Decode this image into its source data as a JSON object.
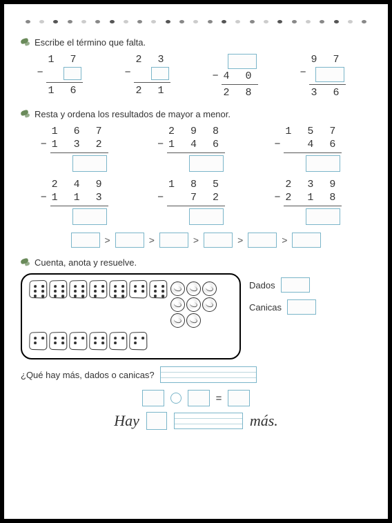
{
  "section1": {
    "instruction": "Escribe el término que falta.",
    "problems": [
      {
        "top": "1 7",
        "bottom": "1 6",
        "box_pos": "mid"
      },
      {
        "top": "2 3",
        "bottom": "2 1",
        "box_pos": "mid"
      },
      {
        "mid": "4 0",
        "bottom": "2 8",
        "box_pos": "top"
      },
      {
        "top": "9 7",
        "bottom": "3 6",
        "box_pos": "mid"
      }
    ]
  },
  "section2": {
    "instruction": "Resta y ordena los resultados de mayor a menor.",
    "problems": [
      {
        "a": "1 6 7",
        "b": "1 3 2"
      },
      {
        "a": "2 9 8",
        "b": "1 4 6"
      },
      {
        "a": "1 5 7",
        "b": "  4 6"
      },
      {
        "a": "2 4 9",
        "b": "1 1 3"
      },
      {
        "a": "1 8 5",
        "b": "  7 2"
      },
      {
        "a": "2 3 9",
        "b": "2 1 8"
      }
    ],
    "gt": ">"
  },
  "section3": {
    "instruction": "Cuenta, anota y resuelve.",
    "label_dados": "Dados",
    "label_canicas": "Canicas",
    "question": "¿Qué hay más, dados o canicas?",
    "eq": "=",
    "hay": "Hay",
    "mas": "más.",
    "dice_count": 13,
    "marble_count": 8
  },
  "colors": {
    "box": "#7ab5c9",
    "bullet": "#6a8a5a"
  }
}
